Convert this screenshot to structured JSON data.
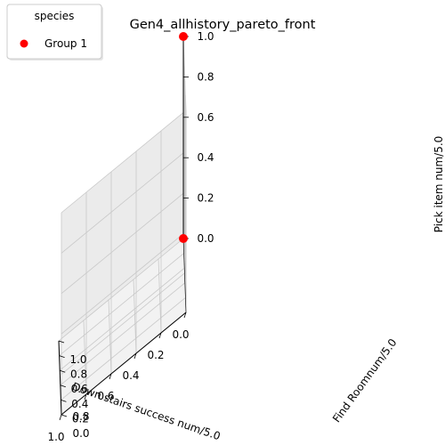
{
  "chart_data": {
    "type": "scatter",
    "projection": "3d",
    "title": "Gen4_allhistory_pareto_front",
    "xlabel": "Down stairs success num/5.0",
    "ylabel": "Find Roomnum/5.0",
    "zlabel": "Pick item num/5.0",
    "xlim": [
      0.0,
      1.0
    ],
    "ylim": [
      0.0,
      1.0
    ],
    "zlim": [
      0.0,
      1.0
    ],
    "xticks": [
      "0.0",
      "0.2",
      "0.4",
      "0.6",
      "0.8",
      "1.0"
    ],
    "yticks": [
      "0.0",
      "0.2",
      "0.4",
      "0.6",
      "0.8",
      "1.0"
    ],
    "zticks": [
      "0.0",
      "0.2",
      "0.4",
      "0.6",
      "0.8",
      "1.0"
    ],
    "grid": true,
    "legend": {
      "title": "species",
      "position": "top-left"
    },
    "series": [
      {
        "name": "Group 1",
        "color": "#ff0000",
        "points": [
          {
            "x": 0.0,
            "y": 1.0,
            "z": 1.0
          },
          {
            "x": 0.0,
            "y": 1.0,
            "z": 0.0
          }
        ]
      }
    ]
  }
}
